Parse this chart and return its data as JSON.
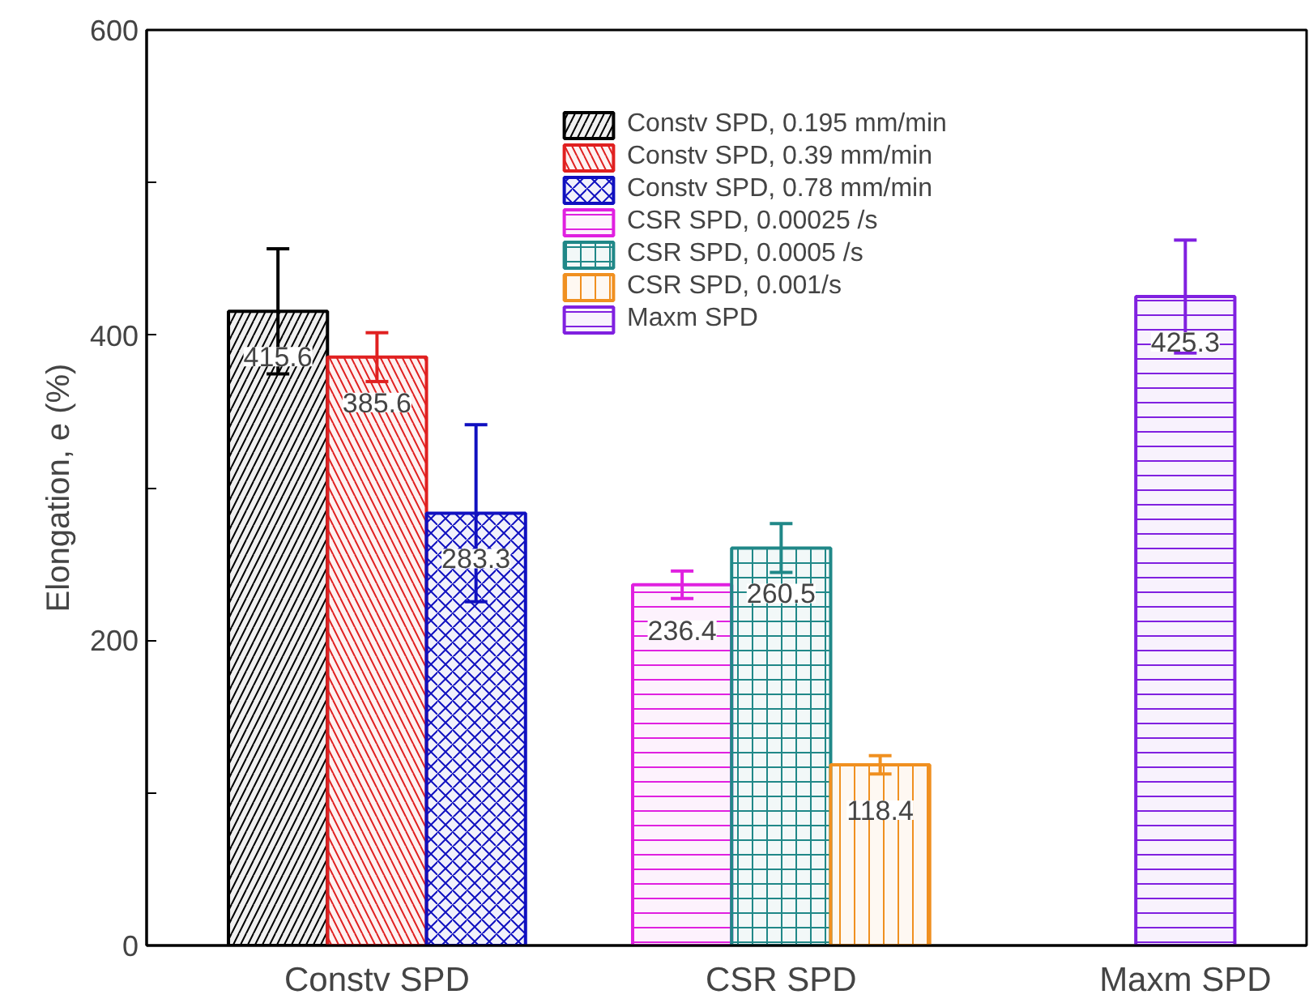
{
  "chart_data": {
    "type": "bar",
    "ylabel": "Elongation, e (%)",
    "categories": [
      "Constv SPD",
      "CSR SPD",
      "Maxm SPD"
    ],
    "series": [
      {
        "name": "Constv SPD, 0.195 mm/min",
        "color": "#000000",
        "values": [
          415.6,
          null,
          null
        ],
        "errors": [
          41,
          null,
          null
        ]
      },
      {
        "name": "Constv SPD, 0.39 mm/min",
        "color": "#e02020",
        "values": [
          385.6,
          null,
          null
        ],
        "errors": [
          16,
          null,
          null
        ]
      },
      {
        "name": "Constv SPD, 0.78 mm/min",
        "color": "#1010c0",
        "values": [
          283.3,
          null,
          null
        ],
        "errors": [
          58,
          null,
          null
        ]
      },
      {
        "name": "CSR SPD, 0.00025 /s",
        "color": "#e020e0",
        "values": [
          null,
          236.4,
          null
        ],
        "errors": [
          null,
          9,
          null
        ]
      },
      {
        "name": "CSR SPD, 0.0005 /s",
        "color": "#208888",
        "values": [
          null,
          260.5,
          null
        ],
        "errors": [
          null,
          16,
          null
        ]
      },
      {
        "name": "CSR SPD, 0.001/s",
        "color": "#f09020",
        "values": [
          null,
          118.4,
          null
        ],
        "errors": [
          null,
          6,
          null
        ]
      },
      {
        "name": "Maxm SPD",
        "color": "#8020e0",
        "values": [
          null,
          null,
          425.3
        ],
        "errors": [
          null,
          null,
          37
        ]
      }
    ],
    "ylim": [
      0,
      600
    ],
    "yticks": [
      0,
      {
        "value": 100,
        "label": null
      },
      200,
      {
        "value": 300,
        "label": null
      },
      400,
      {
        "value": 500,
        "label": null
      },
      600
    ],
    "data_labels": true,
    "grid": false,
    "legend": "top"
  }
}
